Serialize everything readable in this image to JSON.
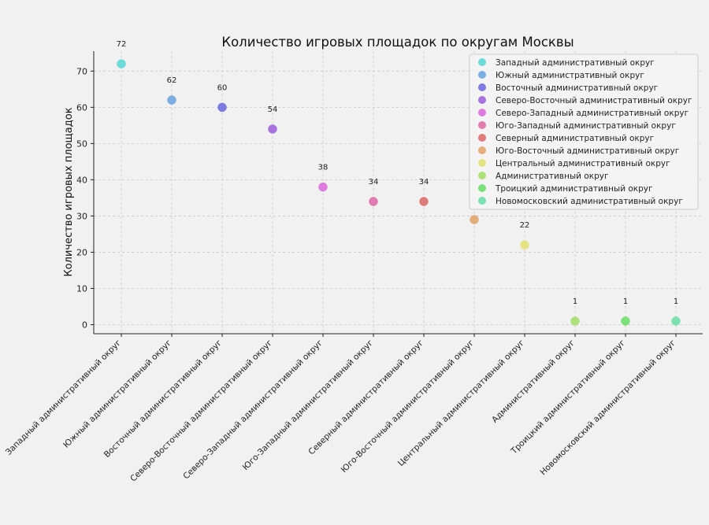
{
  "chart_data": {
    "type": "scatter",
    "title": "Количество игровых площадок по округам Москвы",
    "xlabel": "",
    "ylabel": "Количество игровых площадок",
    "ylim": [
      -2.5,
      75.5
    ],
    "yticks": [
      0,
      10,
      20,
      30,
      40,
      50,
      60,
      70
    ],
    "grid": true,
    "legend_position": "top-right",
    "categories": [
      "Западный административный округ",
      "Южный административный округ",
      "Восточный административный округ",
      "Северо-Восточный административный округ",
      "Северо-Западный административный округ",
      "Юго-Западный административный округ",
      "Северный административный округ",
      "Юго-Восточный административный округ",
      "Центральный административный округ",
      "Административный округ",
      "Троицкий административный округ",
      "Новомосковский административный округ"
    ],
    "values": [
      72,
      62,
      60,
      54,
      38,
      34,
      34,
      29,
      22,
      1,
      1,
      1
    ],
    "data_labels": [
      "72",
      "62",
      "60",
      "54",
      "38",
      "34",
      "34",
      "",
      "22",
      "1",
      "1",
      "1"
    ],
    "colors": [
      "#5fd8d8",
      "#6fa6e0",
      "#6f6fdf",
      "#a065dd",
      "#dc6fdc",
      "#de6fa8",
      "#df6d6d",
      "#e2a66f",
      "#e2e075",
      "#a6df6d",
      "#6fdf6d",
      "#6fdfa8"
    ]
  }
}
